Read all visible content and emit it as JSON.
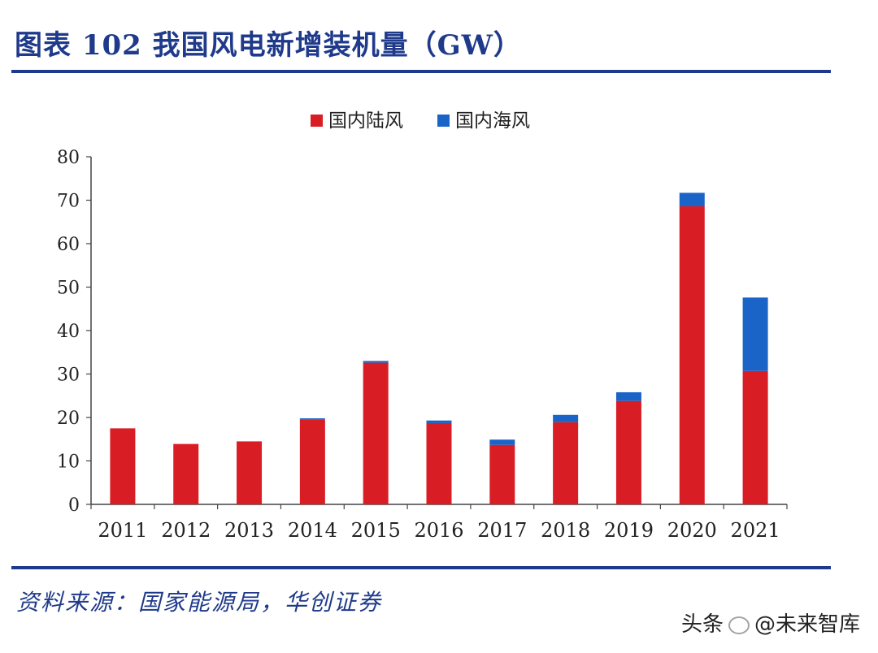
{
  "title": "图表 102  我国风电新增装机量（GW）",
  "source": "资料来源：国家能源局，华创证券",
  "watermark": {
    "left": "头条",
    "right": "@未来智库"
  },
  "colors": {
    "onshore": "#d81e24",
    "offshore": "#1a64c8",
    "heading": "#1f3a8a"
  },
  "chart_data": {
    "type": "bar",
    "stacked": true,
    "categories": [
      "2011",
      "2012",
      "2013",
      "2014",
      "2015",
      "2016",
      "2017",
      "2018",
      "2019",
      "2020",
      "2021"
    ],
    "series": [
      {
        "name": "国内陆风",
        "color": "#d81e24",
        "values": [
          17.5,
          13.9,
          14.5,
          19.6,
          32.6,
          18.7,
          13.7,
          18.9,
          23.8,
          68.6,
          30.7
        ]
      },
      {
        "name": "国内海风",
        "color": "#1a64c8",
        "values": [
          0.0,
          0.0,
          0.0,
          0.2,
          0.4,
          0.6,
          1.2,
          1.7,
          2.0,
          3.1,
          16.9
        ]
      }
    ],
    "ylim": [
      0,
      80
    ],
    "yticks": [
      0,
      10,
      20,
      30,
      40,
      50,
      60,
      70,
      80
    ],
    "legend_position": "top-center",
    "grid": false
  }
}
